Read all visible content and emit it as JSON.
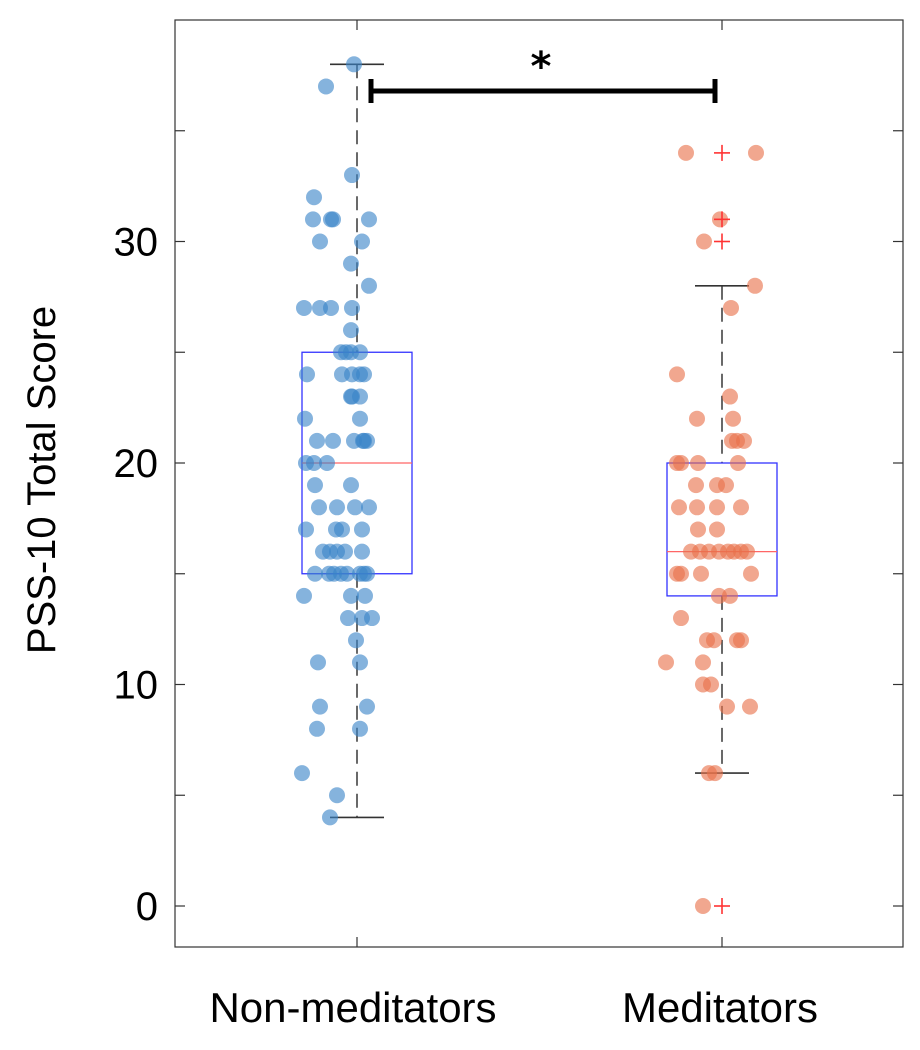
{
  "chart_data": {
    "type": "scatter",
    "subtype": "box-plot-with-jittered-points",
    "ylabel": "PSS-10 Total Score",
    "xlabel": "",
    "ylim": [
      -2,
      40
    ],
    "yticks": [
      0,
      10,
      20,
      30
    ],
    "ytick_labels": [
      "0",
      "10",
      "20",
      "30"
    ],
    "categories": [
      "Non-meditators",
      "Meditators"
    ],
    "significance": {
      "between": [
        "Non-meditators",
        "Meditators"
      ],
      "label": "*"
    },
    "colors": {
      "Non-meditators": "#3a84c8",
      "Meditators": "#e8714a",
      "box": "#3333ff",
      "median": "#ff6666",
      "outlier": "#ff3333"
    },
    "groups": [
      {
        "name": "Non-meditators",
        "box": {
          "q1": 15,
          "median": 20,
          "q3": 25,
          "whisker_low": 4,
          "whisker_high": 38
        },
        "outliers": [],
        "points": [
          [
            -0.03,
            38
          ],
          [
            -0.31,
            37
          ],
          [
            -0.05,
            33
          ],
          [
            -0.43,
            32
          ],
          [
            -0.44,
            31
          ],
          [
            -0.26,
            31
          ],
          [
            -0.24,
            31
          ],
          [
            0.12,
            31
          ],
          [
            -0.37,
            30
          ],
          [
            0.05,
            30
          ],
          [
            -0.06,
            29
          ],
          [
            0.12,
            28
          ],
          [
            -0.53,
            27
          ],
          [
            -0.37,
            27
          ],
          [
            -0.26,
            27
          ],
          [
            -0.05,
            27
          ],
          [
            -0.06,
            26
          ],
          [
            -0.16,
            25
          ],
          [
            -0.11,
            25
          ],
          [
            -0.06,
            25
          ],
          [
            0.03,
            25
          ],
          [
            -0.5,
            24
          ],
          [
            -0.15,
            24
          ],
          [
            -0.05,
            24
          ],
          [
            0.03,
            24
          ],
          [
            0.07,
            24
          ],
          [
            -0.05,
            23
          ],
          [
            -0.06,
            23
          ],
          [
            0.03,
            23
          ],
          [
            -0.52,
            22
          ],
          [
            0.03,
            22
          ],
          [
            -0.4,
            21
          ],
          [
            -0.24,
            21
          ],
          [
            -0.03,
            21
          ],
          [
            0.06,
            21
          ],
          [
            0.07,
            21
          ],
          [
            0.1,
            21
          ],
          [
            -0.51,
            20
          ],
          [
            -0.43,
            20
          ],
          [
            -0.3,
            20
          ],
          [
            -0.42,
            19
          ],
          [
            -0.06,
            19
          ],
          [
            -0.38,
            18
          ],
          [
            -0.2,
            18
          ],
          [
            -0.02,
            18
          ],
          [
            0.12,
            18
          ],
          [
            -0.51,
            17
          ],
          [
            -0.21,
            17
          ],
          [
            -0.15,
            17
          ],
          [
            0.05,
            17
          ],
          [
            -0.34,
            16
          ],
          [
            -0.27,
            16
          ],
          [
            -0.2,
            16
          ],
          [
            -0.12,
            16
          ],
          [
            0.05,
            16
          ],
          [
            -0.42,
            15
          ],
          [
            -0.28,
            15
          ],
          [
            -0.23,
            15
          ],
          [
            -0.16,
            15
          ],
          [
            -0.1,
            15
          ],
          [
            0.03,
            15
          ],
          [
            0.07,
            15
          ],
          [
            0.1,
            15
          ],
          [
            -0.53,
            14
          ],
          [
            -0.06,
            14
          ],
          [
            0.08,
            14
          ],
          [
            -0.09,
            13
          ],
          [
            0.05,
            13
          ],
          [
            0.15,
            13
          ],
          [
            -0.01,
            12
          ],
          [
            -0.39,
            11
          ],
          [
            0.03,
            11
          ],
          [
            -0.37,
            9
          ],
          [
            0.1,
            9
          ],
          [
            -0.4,
            8
          ],
          [
            0.03,
            8
          ],
          [
            -0.55,
            6
          ],
          [
            -0.2,
            5
          ],
          [
            -0.27,
            4
          ]
        ]
      },
      {
        "name": "Meditators",
        "box": {
          "q1": 14,
          "median": 16,
          "q3": 20,
          "whisker_low": 6,
          "whisker_high": 28
        },
        "outliers": [
          34,
          31,
          30,
          0
        ],
        "points": [
          [
            -0.36,
            34
          ],
          [
            0.34,
            34
          ],
          [
            -0.02,
            31
          ],
          [
            -0.18,
            30
          ],
          [
            0.33,
            28
          ],
          [
            0.09,
            27
          ],
          [
            -0.45,
            24
          ],
          [
            0.08,
            23
          ],
          [
            -0.25,
            22
          ],
          [
            0.11,
            22
          ],
          [
            0.1,
            21
          ],
          [
            0.15,
            21
          ],
          [
            0.22,
            21
          ],
          [
            -0.45,
            20
          ],
          [
            -0.41,
            20
          ],
          [
            -0.24,
            20
          ],
          [
            0.16,
            20
          ],
          [
            -0.26,
            19
          ],
          [
            -0.05,
            19
          ],
          [
            0.04,
            19
          ],
          [
            -0.43,
            18
          ],
          [
            -0.25,
            18
          ],
          [
            -0.05,
            18
          ],
          [
            0.19,
            18
          ],
          [
            -0.24,
            17
          ],
          [
            -0.05,
            17
          ],
          [
            -0.31,
            16
          ],
          [
            -0.22,
            16
          ],
          [
            -0.13,
            16
          ],
          [
            -0.03,
            16
          ],
          [
            0.06,
            16
          ],
          [
            0.12,
            16
          ],
          [
            0.19,
            16
          ],
          [
            0.25,
            16
          ],
          [
            -0.45,
            15
          ],
          [
            -0.41,
            15
          ],
          [
            -0.21,
            15
          ],
          [
            0.29,
            15
          ],
          [
            -0.03,
            14
          ],
          [
            0.08,
            14
          ],
          [
            -0.41,
            13
          ],
          [
            -0.15,
            12
          ],
          [
            -0.08,
            12
          ],
          [
            0.15,
            12
          ],
          [
            0.19,
            12
          ],
          [
            -0.56,
            11
          ],
          [
            -0.19,
            11
          ],
          [
            -0.19,
            10
          ],
          [
            -0.11,
            10
          ],
          [
            0.05,
            9
          ],
          [
            0.28,
            9
          ],
          [
            -0.13,
            6
          ],
          [
            -0.07,
            6
          ],
          [
            -0.19,
            0
          ]
        ]
      }
    ]
  }
}
